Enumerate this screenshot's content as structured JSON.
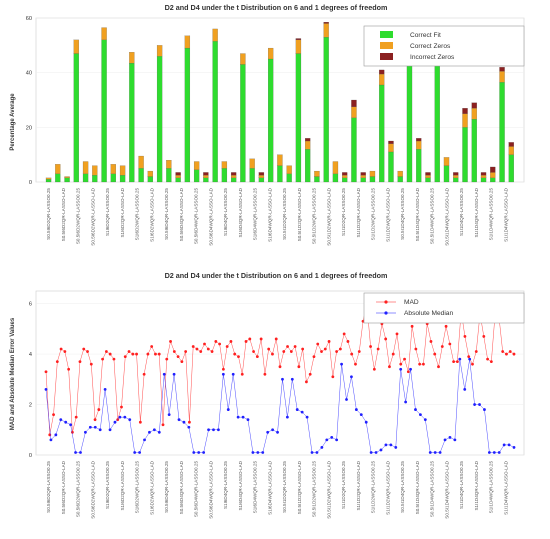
{
  "categories": [
    "S0.5I6D2QR-LASSO0.25",
    "S0.5I6D2QR-LASSO-LAD",
    "S0.5I6D2WQR-LASSO0.25",
    "S0.5I6D2WQR-LASSO-LAD",
    "S1I6D2QR-LASSO0.25",
    "S1I6D2QR-LASSO-LAD",
    "S1I6D2WQR-LASSO0.25",
    "S1I6D2WQR-LASSO-LAD",
    "S0.5I6D4QR-LASSO0.25",
    "S0.5I6D4QR-LASSO-LAD",
    "S0.5I6D4WQR-LASSO0.25",
    "S0.5I6D4WQR-LASSO-LAD",
    "S1I6D4QR-LASSO0.25",
    "S1I6D4QR-LASSO-LAD",
    "S1I6D4WQR-LASSO0.25",
    "S1I6D4WQR-LASSO-LAD",
    "S0.5I1D2QR-LASSO0.25",
    "S0.5I1D2QR-LASSO-LAD",
    "S0.5I1D2WQR-LASSO0.25",
    "S0.5I1D2WQR-LASSO-LAD",
    "S1I1D2QR-LASSO0.25",
    "S1I1D2QR-LASSO-LAD",
    "S1I1D2WQR-LASSO0.25",
    "S1I1D2WQR-LASSO-LAD",
    "S0.5I1D4QR-LASSO0.25",
    "S0.5I1D4QR-LASSO-LAD",
    "S0.5I1D4WQR-LASSO0.25",
    "S0.5I1D4WQR-LASSO-LAD",
    "S1I1D4QR-LASSO0.25",
    "S1I1D4QR-LASSO-LAD",
    "S1I1D4WQR-LASSO0.25",
    "S1I1D4WQR-LASSO-LAD"
  ],
  "top_chart": {
    "type": "bar",
    "title": "D2 and D4 under the t Distribution on 6 and 1 degrees of freedom",
    "ylabel": "Percentage Average",
    "ylim": [
      0,
      60
    ],
    "yticks": [
      0,
      20,
      40,
      60
    ],
    "legend_position": "top-right",
    "series": [
      {
        "name": "Correct Fit",
        "color": "#2edc2e"
      },
      {
        "name": "Correct Zeros",
        "color": "#f0a020"
      },
      {
        "name": "Incorrect Zeros",
        "color": "#8b2020"
      }
    ],
    "groups": [
      {
        "bars": [
          [
            1,
            0.5,
            0
          ],
          [
            3,
            3.5,
            0
          ],
          [
            1.5,
            0.5,
            0
          ]
        ]
      },
      {
        "bars": [
          [
            47,
            5,
            0
          ],
          [
            3,
            4.5,
            0
          ],
          [
            2.5,
            3.5,
            0
          ]
        ]
      },
      {
        "bars": [
          [
            52,
            4.5,
            0
          ],
          [
            3,
            3.5,
            0
          ],
          [
            2.5,
            3.5,
            0
          ]
        ]
      },
      {
        "bars": [
          [
            43.5,
            4,
            0
          ],
          [
            5,
            4.5,
            0
          ],
          [
            2,
            2,
            0
          ]
        ]
      },
      {
        "bars": [
          [
            46,
            4,
            0
          ],
          [
            5,
            3,
            0
          ],
          [
            1.5,
            1,
            1
          ]
        ]
      },
      {
        "bars": [
          [
            49,
            4.5,
            0
          ],
          [
            4.5,
            3,
            0
          ],
          [
            1.5,
            1,
            1
          ]
        ]
      },
      {
        "bars": [
          [
            51.5,
            4.5,
            0
          ],
          [
            5,
            2.5,
            0
          ],
          [
            1.5,
            1,
            1
          ]
        ]
      },
      {
        "bars": [
          [
            43,
            4,
            0
          ],
          [
            5,
            3.5,
            0
          ],
          [
            1.5,
            1,
            1
          ]
        ]
      },
      {
        "bars": [
          [
            45,
            4,
            0
          ],
          [
            6,
            4,
            0
          ],
          [
            3,
            3,
            0
          ]
        ]
      },
      {
        "bars": [
          [
            47,
            5,
            0.5
          ],
          [
            12,
            3,
            1
          ],
          [
            2,
            2,
            0
          ]
        ]
      },
      {
        "bars": [
          [
            53,
            5,
            0.5
          ],
          [
            3,
            4.5,
            0
          ],
          [
            1.5,
            1,
            1
          ]
        ]
      },
      {
        "bars": [
          [
            23.5,
            4,
            2.5
          ],
          [
            1.5,
            1,
            1
          ],
          [
            2,
            2,
            0
          ]
        ]
      },
      {
        "bars": [
          [
            35.5,
            4,
            1.5
          ],
          [
            11,
            3,
            1
          ],
          [
            2,
            2,
            0
          ]
        ]
      },
      {
        "bars": [
          [
            45,
            4,
            1
          ],
          [
            12,
            3,
            1
          ],
          [
            1.5,
            1,
            1
          ]
        ]
      },
      {
        "bars": [
          [
            51.5,
            4.5,
            0.5
          ],
          [
            6,
            3,
            0
          ],
          [
            1.5,
            1,
            1
          ]
        ]
      },
      {
        "bars": [
          [
            23,
            4,
            2
          ],
          [
            1.5,
            1,
            1
          ],
          [
            1.5,
            2,
            2
          ]
        ]
      },
      {
        "bars": [
          [
            36.5,
            4,
            1.5
          ],
          [
            10,
            3,
            1.5
          ]
        ]
      }
    ],
    "extra_bars": [
      [
        20,
        5,
        2
      ]
    ],
    "extra_bar_after_group": 14
  },
  "bottom_chart": {
    "type": "line",
    "title": "D2 and D4 under the t Distribution on 6 and 1 degrees of freedom",
    "ylabel": "MAD and Absolute Median Error Values",
    "ylim": [
      0,
      6.5
    ],
    "yticks": [
      0,
      2,
      4,
      6
    ],
    "legend_position": "top-right",
    "series": [
      {
        "name": "MAD",
        "color": "#ff2020",
        "values": [
          3.3,
          0.8,
          1.6,
          3.7,
          4.2,
          4.1,
          3.4,
          0.9,
          1.5,
          3.7,
          4.2,
          4.1,
          3.6,
          1.4,
          1.8,
          3.8,
          4.1,
          4.0,
          3.8,
          1.4,
          1.9,
          3.9,
          4.1,
          4.0,
          4.0,
          1.3,
          3.2,
          4.0,
          4.3,
          4.0,
          4.0,
          1.2,
          3.8,
          4.5,
          4.1,
          3.9,
          3.7,
          4.1,
          1.3,
          4.3,
          4.2,
          4.1,
          4.4,
          4.2,
          4.1,
          4.5,
          4.4,
          3.4,
          4.3,
          4.5,
          4.0,
          3.9,
          3.2,
          4.5,
          4.6,
          4.1,
          3.9,
          4.6,
          3.2,
          4.2,
          4.0,
          4.6,
          3.5,
          4.1,
          4.3,
          4.1,
          4.3,
          3.5,
          4.2,
          2.9,
          3.2,
          3.9,
          4.4,
          4.1,
          4.2,
          4.5,
          3.1,
          4.1,
          4.2,
          4.8,
          4.5,
          4.0,
          3.6,
          4.1,
          5.3,
          6.0,
          4.3,
          3.4,
          4.2,
          5.2,
          4.6,
          3.5,
          4.0,
          4.8,
          3.6,
          3.8,
          3.3,
          5.1,
          4.2,
          3.6,
          3.6,
          5.2,
          4.5,
          4.0,
          3.5,
          4.3,
          5.1,
          4.4,
          3.7,
          3.7,
          5.7,
          4.7,
          3.9,
          3.6,
          4.1,
          5.6,
          4.7,
          3.8,
          3.7,
          5.6,
          5.5,
          4.1,
          4.0,
          4.1,
          4.0
        ]
      },
      {
        "name": "Absolute Median",
        "color": "#2020ff",
        "values": [
          2.6,
          0.6,
          0.8,
          1.4,
          1.3,
          1.2,
          0.1,
          0.1,
          0.9,
          1.1,
          1.1,
          1.0,
          2.6,
          1.0,
          1.3,
          1.5,
          1.5,
          1.4,
          0.1,
          0.1,
          0.6,
          0.9,
          1.0,
          0.9,
          3.2,
          1.6,
          3.2,
          1.4,
          1.3,
          1.1,
          0.1,
          0.1,
          0.1,
          1.0,
          1.0,
          1.0,
          3.2,
          1.8,
          3.2,
          1.5,
          1.5,
          1.4,
          0.1,
          0.1,
          0.1,
          0.9,
          1.0,
          0.9,
          3.0,
          1.5,
          3.0,
          1.8,
          1.7,
          1.5,
          0.1,
          0.1,
          0.3,
          0.6,
          0.7,
          0.6,
          3.6,
          2.2,
          3.1,
          1.8,
          1.6,
          1.3,
          0.1,
          0.1,
          0.2,
          0.4,
          0.4,
          0.3,
          3.4,
          2.1,
          3.4,
          1.8,
          1.6,
          1.4,
          0.1,
          0.1,
          0.1,
          0.6,
          0.7,
          0.6,
          3.8,
          2.6,
          3.8,
          2.0,
          2.0,
          1.8,
          0.1,
          0.1,
          0.1,
          0.4,
          0.4,
          0.3
        ]
      }
    ]
  }
}
